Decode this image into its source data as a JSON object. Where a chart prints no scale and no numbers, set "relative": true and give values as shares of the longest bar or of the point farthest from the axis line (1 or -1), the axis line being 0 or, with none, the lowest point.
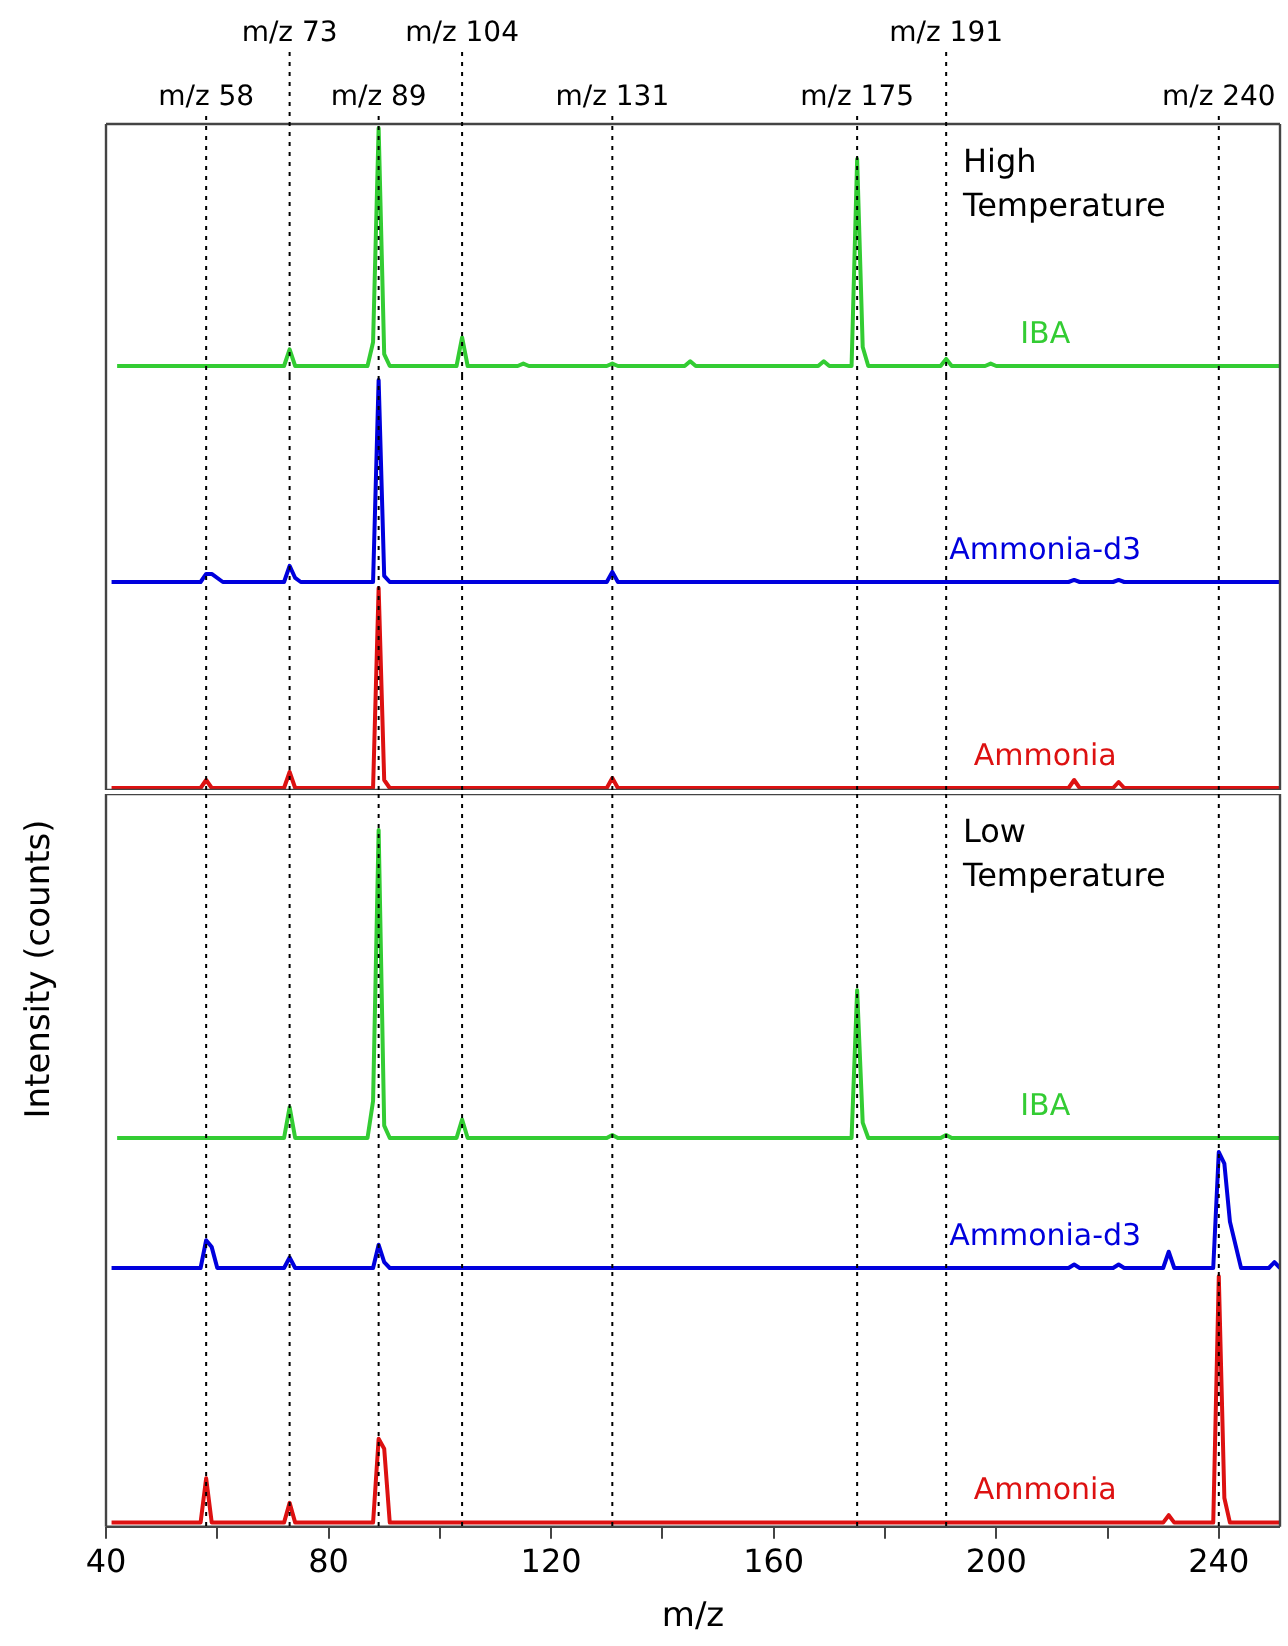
{
  "chart_data": [
    {
      "type": "line",
      "relative": true,
      "xlim": [
        40,
        251
      ],
      "tick_labels": false,
      "annotations": [
        "High Temperature"
      ],
      "series": [
        {
          "name": "IBA",
          "color": "#33cc33",
          "x": [
            42,
            72,
            73,
            74,
            87,
            88,
            89,
            90,
            91,
            103,
            104,
            105,
            114,
            115,
            116,
            130,
            131,
            132,
            144,
            145,
            146,
            168,
            169,
            170,
            174,
            175,
            176,
            177,
            190,
            191,
            192,
            198,
            199,
            200,
            251
          ],
          "values": [
            0,
            0,
            0.07,
            0,
            0,
            0.1,
            1,
            0.05,
            0,
            0,
            0.12,
            0,
            0,
            0.01,
            0,
            0,
            0.01,
            0,
            0,
            0.02,
            0,
            0,
            0.02,
            0,
            0,
            0.87,
            0.08,
            0,
            0,
            0.03,
            0,
            0,
            0.01,
            0,
            0
          ]
        }
      ],
      "ref_lines": [
        {
          "axis": "x",
          "value": 58,
          "label": "m/z 58",
          "line_style": "dotted",
          "color": "#000000"
        },
        {
          "axis": "x",
          "value": 73,
          "label": "m/z 73",
          "line_style": "dotted",
          "color": "#000000"
        },
        {
          "axis": "x",
          "value": 89,
          "label": "m/z 89",
          "line_style": "dotted",
          "color": "#000000"
        },
        {
          "axis": "x",
          "value": 104,
          "label": "m/z 104",
          "line_style": "dotted",
          "color": "#000000"
        },
        {
          "axis": "x",
          "value": 131,
          "label": "m/z 131",
          "line_style": "dotted",
          "color": "#000000"
        },
        {
          "axis": "x",
          "value": 175,
          "label": "m/z 175",
          "line_style": "dotted",
          "color": "#000000"
        },
        {
          "axis": "x",
          "value": 191,
          "label": "m/z 191",
          "line_style": "dotted",
          "color": "#000000"
        },
        {
          "axis": "x",
          "value": 240,
          "label": "m/z 240",
          "line_style": "dotted",
          "color": "#000000"
        }
      ]
    },
    {
      "type": "line",
      "relative": true,
      "xlim": [
        40,
        251
      ],
      "tick_labels": false,
      "series": [
        {
          "name": "Ammonia-d3",
          "color": "#0000dd",
          "x": [
            41,
            57,
            58,
            59,
            61,
            72,
            73,
            74,
            75,
            88,
            89,
            90,
            91,
            130,
            131,
            132,
            213,
            214,
            215,
            221,
            222,
            223,
            251
          ],
          "values": [
            0,
            0,
            0.04,
            0.04,
            0,
            0,
            0.08,
            0.02,
            0,
            0,
            1,
            0.03,
            0,
            0,
            0.05,
            0,
            0,
            0.01,
            0,
            0,
            0.01,
            0,
            0
          ]
        }
      ],
      "ref_lines": [
        {
          "axis": "x",
          "value": 58,
          "line_style": "dotted",
          "color": "#000000"
        },
        {
          "axis": "x",
          "value": 73,
          "line_style": "dotted",
          "color": "#000000"
        },
        {
          "axis": "x",
          "value": 89,
          "line_style": "dotted",
          "color": "#000000"
        },
        {
          "axis": "x",
          "value": 104,
          "line_style": "dotted",
          "color": "#000000"
        },
        {
          "axis": "x",
          "value": 131,
          "line_style": "dotted",
          "color": "#000000"
        },
        {
          "axis": "x",
          "value": 175,
          "line_style": "dotted",
          "color": "#000000"
        },
        {
          "axis": "x",
          "value": 191,
          "line_style": "dotted",
          "color": "#000000"
        },
        {
          "axis": "x",
          "value": 240,
          "line_style": "dotted",
          "color": "#000000"
        }
      ]
    },
    {
      "type": "line",
      "relative": true,
      "xlim": [
        40,
        251
      ],
      "tick_labels": false,
      "series": [
        {
          "name": "Ammonia",
          "color": "#dd1111",
          "x": [
            41,
            57,
            58,
            59,
            72,
            73,
            74,
            88,
            89,
            90,
            91,
            130,
            131,
            132,
            213,
            214,
            215,
            221,
            222,
            223,
            251
          ],
          "values": [
            0,
            0,
            0.04,
            0,
            0,
            0.08,
            0,
            0,
            1,
            0.04,
            0,
            0,
            0.05,
            0,
            0,
            0.04,
            0,
            0,
            0.03,
            0,
            0
          ]
        }
      ],
      "ref_lines": [
        {
          "axis": "x",
          "value": 58,
          "line_style": "dotted",
          "color": "#000000"
        },
        {
          "axis": "x",
          "value": 73,
          "line_style": "dotted",
          "color": "#000000"
        },
        {
          "axis": "x",
          "value": 89,
          "line_style": "dotted",
          "color": "#000000"
        },
        {
          "axis": "x",
          "value": 104,
          "line_style": "dotted",
          "color": "#000000"
        },
        {
          "axis": "x",
          "value": 131,
          "line_style": "dotted",
          "color": "#000000"
        },
        {
          "axis": "x",
          "value": 175,
          "line_style": "dotted",
          "color": "#000000"
        },
        {
          "axis": "x",
          "value": 191,
          "line_style": "dotted",
          "color": "#000000"
        },
        {
          "axis": "x",
          "value": 240,
          "line_style": "dotted",
          "color": "#000000"
        }
      ]
    },
    {
      "type": "line",
      "relative": true,
      "xlim": [
        40,
        251
      ],
      "tick_labels": false,
      "ylabel": "Intensity (counts)",
      "annotations": [
        "Low Temperature"
      ],
      "series": [
        {
          "name": "IBA",
          "color": "#33cc33",
          "x": [
            42,
            72,
            73,
            74,
            87,
            88,
            89,
            90,
            91,
            103,
            104,
            105,
            130,
            131,
            132,
            174,
            175,
            176,
            177,
            190,
            191,
            192,
            251
          ],
          "values": [
            0,
            0,
            0.1,
            0,
            0,
            0.12,
            1,
            0.04,
            0,
            0,
            0.06,
            0,
            0,
            0.01,
            0,
            0,
            0.48,
            0.05,
            0,
            0,
            0.01,
            0,
            0
          ]
        }
      ],
      "ref_lines": [
        {
          "axis": "x",
          "value": 58,
          "line_style": "dotted",
          "color": "#000000"
        },
        {
          "axis": "x",
          "value": 73,
          "line_style": "dotted",
          "color": "#000000"
        },
        {
          "axis": "x",
          "value": 89,
          "line_style": "dotted",
          "color": "#000000"
        },
        {
          "axis": "x",
          "value": 104,
          "line_style": "dotted",
          "color": "#000000"
        },
        {
          "axis": "x",
          "value": 131,
          "line_style": "dotted",
          "color": "#000000"
        },
        {
          "axis": "x",
          "value": 175,
          "line_style": "dotted",
          "color": "#000000"
        },
        {
          "axis": "x",
          "value": 191,
          "line_style": "dotted",
          "color": "#000000"
        },
        {
          "axis": "x",
          "value": 240,
          "line_style": "dotted",
          "color": "#000000"
        }
      ]
    },
    {
      "type": "line",
      "relative": true,
      "xlim": [
        40,
        251
      ],
      "tick_labels": false,
      "series": [
        {
          "name": "Ammonia-d3",
          "color": "#0000dd",
          "x": [
            41,
            57,
            58,
            59,
            60,
            72,
            73,
            74,
            88,
            89,
            90,
            91,
            213,
            214,
            215,
            221,
            222,
            223,
            230,
            231,
            232,
            239,
            240,
            241,
            242,
            244,
            249,
            250,
            251
          ],
          "values": [
            0,
            0,
            0.24,
            0.18,
            0,
            0,
            0.09,
            0,
            0,
            0.2,
            0.05,
            0,
            0,
            0.03,
            0,
            0,
            0.03,
            0,
            0,
            0.14,
            0,
            0,
            1,
            0.9,
            0.4,
            0,
            0,
            0.05,
            0
          ]
        }
      ],
      "ref_lines": [
        {
          "axis": "x",
          "value": 58,
          "line_style": "dotted",
          "color": "#000000"
        },
        {
          "axis": "x",
          "value": 73,
          "line_style": "dotted",
          "color": "#000000"
        },
        {
          "axis": "x",
          "value": 89,
          "line_style": "dotted",
          "color": "#000000"
        },
        {
          "axis": "x",
          "value": 104,
          "line_style": "dotted",
          "color": "#000000"
        },
        {
          "axis": "x",
          "value": 131,
          "line_style": "dotted",
          "color": "#000000"
        },
        {
          "axis": "x",
          "value": 175,
          "line_style": "dotted",
          "color": "#000000"
        },
        {
          "axis": "x",
          "value": 191,
          "line_style": "dotted",
          "color": "#000000"
        },
        {
          "axis": "x",
          "value": 240,
          "line_style": "dotted",
          "color": "#000000"
        }
      ]
    },
    {
      "type": "line",
      "relative": true,
      "xlim": [
        40,
        251
      ],
      "tick_labels": "x",
      "xlabel": "m/z",
      "xticks": [
        40,
        {
          "value": 60,
          "label": null
        },
        80,
        {
          "value": 100,
          "label": null
        },
        120,
        {
          "value": 140,
          "label": null
        },
        160,
        {
          "value": 180,
          "label": null
        },
        200,
        {
          "value": 220,
          "label": null
        },
        240
      ],
      "series": [
        {
          "name": "Ammonia",
          "color": "#dd1111",
          "x": [
            41,
            57,
            58,
            59,
            72,
            73,
            74,
            88,
            89,
            90,
            91,
            230,
            231,
            232,
            239,
            240,
            241,
            242,
            251
          ],
          "values": [
            0,
            0,
            0.18,
            0,
            0,
            0.08,
            0,
            0,
            0.34,
            0.3,
            0,
            0,
            0.03,
            0,
            0,
            1,
            0.1,
            0,
            0
          ]
        }
      ],
      "ref_lines": [
        {
          "axis": "x",
          "value": 58,
          "line_style": "dotted",
          "color": "#000000"
        },
        {
          "axis": "x",
          "value": 73,
          "line_style": "dotted",
          "color": "#000000"
        },
        {
          "axis": "x",
          "value": 89,
          "line_style": "dotted",
          "color": "#000000"
        },
        {
          "axis": "x",
          "value": 104,
          "line_style": "dotted",
          "color": "#000000"
        },
        {
          "axis": "x",
          "value": 131,
          "line_style": "dotted",
          "color": "#000000"
        },
        {
          "axis": "x",
          "value": 175,
          "line_style": "dotted",
          "color": "#000000"
        },
        {
          "axis": "x",
          "value": 191,
          "line_style": "dotted",
          "color": "#000000"
        },
        {
          "axis": "x",
          "value": 240,
          "line_style": "dotted",
          "color": "#000000"
        }
      ]
    }
  ]
}
